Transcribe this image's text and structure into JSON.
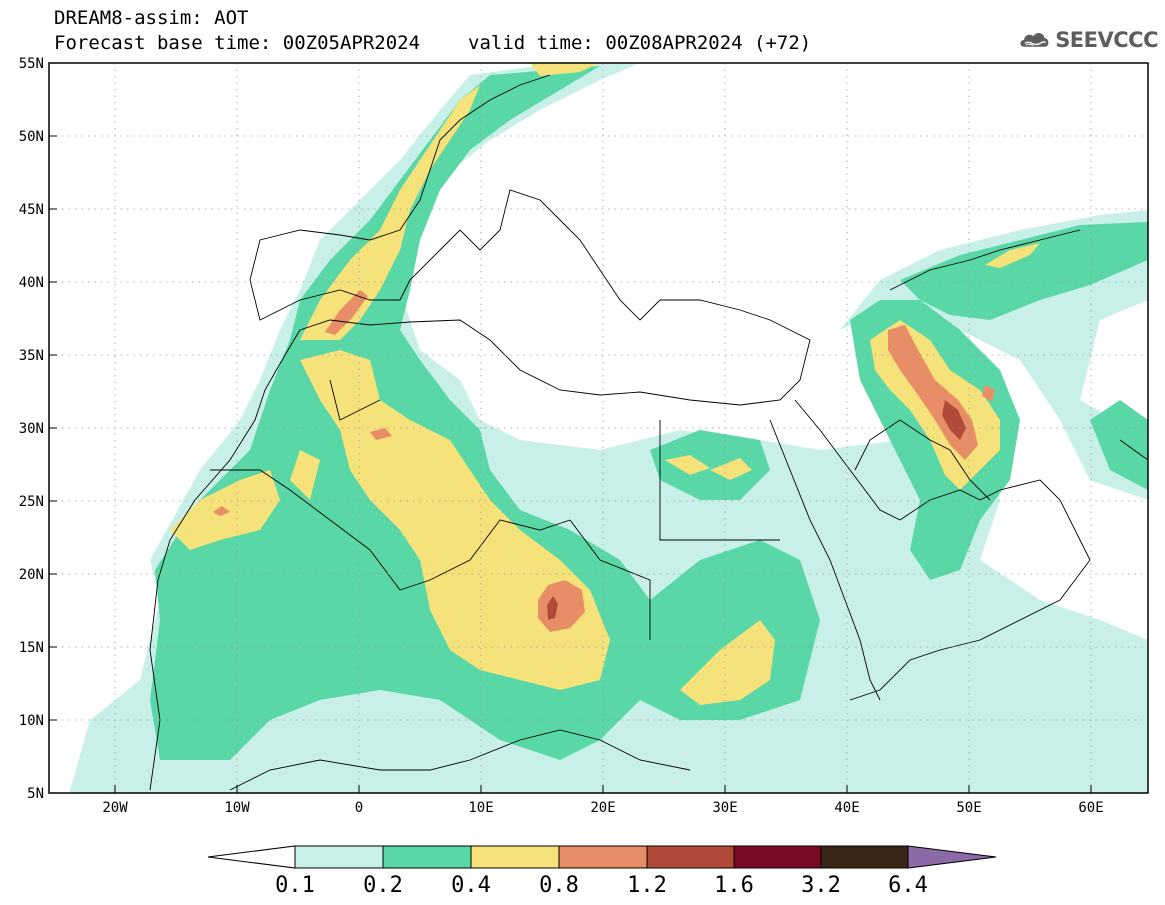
{
  "title": {
    "line1": "DREAM8-assim: AOT",
    "base_time": "Forecast base time: 00Z05APR2024",
    "valid_time": "valid time: 00Z08APR2024 (+72)"
  },
  "logo": {
    "text": "SEEVCCC",
    "icon": "cloud-logo-icon"
  },
  "map": {
    "lon_range": [
      -25,
      65
    ],
    "lat_range": [
      5,
      55
    ],
    "grid": true,
    "lat_ticks": [
      "55N",
      "50N",
      "45N",
      "40N",
      "35N",
      "30N",
      "25N",
      "20N",
      "15N",
      "10N",
      "5N"
    ],
    "lon_ticks": [
      "20W",
      "10W",
      "0",
      "10E",
      "20E",
      "30E",
      "40E",
      "50E",
      "60E"
    ]
  },
  "colorbar": {
    "labels": [
      "0.1",
      "0.2",
      "0.4",
      "0.8",
      "1.2",
      "1.6",
      "3.2",
      "6.4"
    ],
    "colors": [
      "#ffffff",
      "#c8f0e8",
      "#5ad7a6",
      "#f5e27a",
      "#e88e66",
      "#b24a3a",
      "#7a0a24",
      "#3a2616",
      "#8c6aa8"
    ]
  }
}
